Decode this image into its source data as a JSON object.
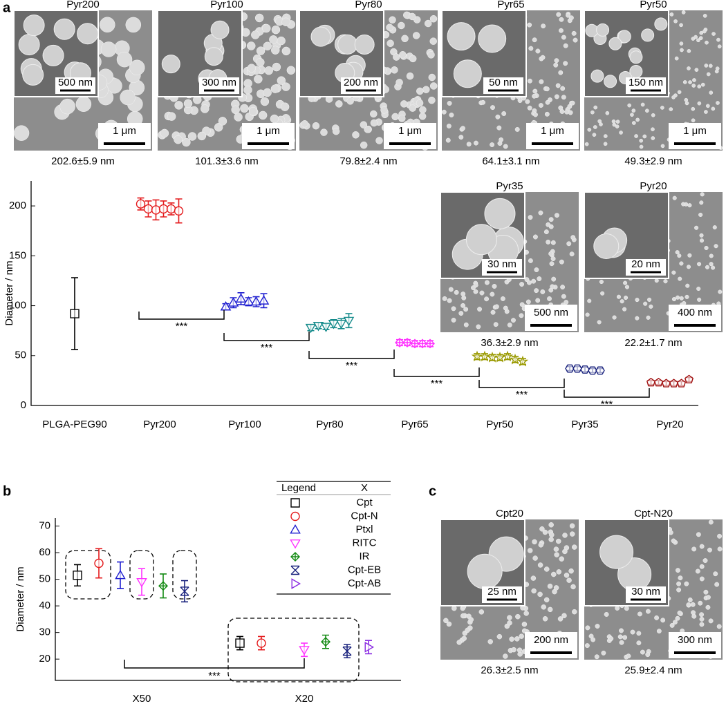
{
  "panel_labels": [
    "a",
    "b",
    "c"
  ],
  "sem_images": [
    {
      "title": "Pyr200",
      "inset_scale": "500 nm",
      "scale": "1 μm",
      "size": "202.6±5.9 nm"
    },
    {
      "title": "Pyr100",
      "inset_scale": "300 nm",
      "scale": "1 μm",
      "size": "101.3±3.6 nm"
    },
    {
      "title": "Pyr80",
      "inset_scale": "200 nm",
      "scale": "1 μm",
      "size": "79.8±2.4 nm"
    },
    {
      "title": "Pyr65",
      "inset_scale": "50 nm",
      "scale": "1 μm",
      "size": "64.1±3.1 nm"
    },
    {
      "title": "Pyr50",
      "inset_scale": "150 nm",
      "scale": "1 μm",
      "size": "49.3±2.9 nm"
    },
    {
      "title": "Pyr35",
      "inset_scale": "30 nm",
      "scale": "500 nm",
      "size": "36.3±2.9 nm"
    },
    {
      "title": "Pyr20",
      "inset_scale": "20 nm",
      "scale": "400 nm",
      "size": "22.2±1.7 nm"
    },
    {
      "title": "Cpt20",
      "inset_scale": "25 nm",
      "scale": "200 nm",
      "size": "26.3±2.5 nm"
    },
    {
      "title": "Cpt-N20",
      "inset_scale": "30 nm",
      "scale": "300 nm",
      "size": "25.9±2.4 nm"
    }
  ],
  "chart_data": [
    {
      "type": "scatter",
      "y_label": "Diameter / nm",
      "categories": [
        "PLGA-PEG90",
        "Pyr200",
        "Pyr100",
        "Pyr80",
        "Pyr65",
        "Pyr50",
        "Pyr35",
        "Pyr20"
      ],
      "groups": [
        {
          "color": "#000000",
          "marker": "square",
          "values": [
            92
          ],
          "errors": [
            36
          ]
        },
        {
          "color": "#e41a1c",
          "marker": "circle",
          "values": [
            202,
            197,
            196,
            197,
            197,
            195
          ],
          "errors": [
            6,
            8,
            10,
            8,
            6,
            12
          ]
        },
        {
          "color": "#1f1fd0",
          "marker": "triangle-up",
          "values": [
            99,
            103,
            107,
            104,
            104,
            105
          ],
          "errors": [
            3,
            5,
            6,
            4,
            5,
            7
          ]
        },
        {
          "color": "#138a8a",
          "marker": "triangle-down",
          "values": [
            78,
            80,
            79,
            82,
            82,
            85
          ],
          "errors": [
            3,
            3,
            3,
            4,
            5,
            7
          ]
        },
        {
          "color": "#ff33ff",
          "marker": "diamond-plus",
          "values": [
            63,
            63,
            62,
            62,
            62
          ],
          "errors": [
            3,
            3,
            3,
            3,
            3
          ]
        },
        {
          "color": "#9a9a00",
          "marker": "star",
          "values": [
            49,
            49,
            48,
            48,
            49,
            46,
            44
          ],
          "errors": [
            3,
            3,
            3,
            3,
            3,
            3,
            3
          ]
        },
        {
          "color": "#1a237e",
          "marker": "hexagon",
          "values": [
            37,
            37,
            36,
            35,
            35
          ],
          "errors": [
            2,
            2,
            2,
            2,
            2
          ]
        },
        {
          "color": "#a01010",
          "marker": "pentagon",
          "values": [
            23,
            23,
            22,
            22,
            22,
            26
          ],
          "errors": [
            2,
            2,
            2,
            2,
            2,
            2
          ]
        }
      ],
      "ylim": [
        0,
        225
      ],
      "yticks": [
        0,
        50,
        100,
        150,
        200
      ],
      "significance": [
        "***",
        "***",
        "***",
        "***",
        "***",
        "***"
      ]
    },
    {
      "type": "scatter",
      "y_label": "Diameter / nm",
      "categories": [
        "X50",
        "X20"
      ],
      "legend_header": [
        "Legend",
        "X"
      ],
      "series": [
        {
          "name": "Cpt",
          "color": "#000000",
          "marker": "square",
          "values": [
            51.5,
            26
          ],
          "errors": [
            4,
            2.5
          ]
        },
        {
          "name": "Cpt-N",
          "color": "#e41a1c",
          "marker": "circle",
          "values": [
            56,
            26
          ],
          "errors": [
            5.5,
            2.5
          ]
        },
        {
          "name": "Ptxl",
          "color": "#1f1fd0",
          "marker": "triangle-up",
          "values": [
            51.5,
            null
          ],
          "errors": [
            5,
            null
          ]
        },
        {
          "name": "RITC",
          "color": "#ff33ff",
          "marker": "triangle-down",
          "values": [
            49,
            23.5
          ],
          "errors": [
            5,
            2.5
          ]
        },
        {
          "name": "IR",
          "color": "#138a13",
          "marker": "diamond-plus",
          "values": [
            47.5,
            26.5
          ],
          "errors": [
            4.5,
            2.5
          ]
        },
        {
          "name": "Cpt-EB",
          "color": "#1a237e",
          "marker": "cross-box",
          "values": [
            45.5,
            23
          ],
          "errors": [
            4,
            2.5
          ]
        },
        {
          "name": "Cpt-AB",
          "color": "#8a2be2",
          "marker": "triangle-right",
          "values": [
            null,
            24.5
          ],
          "errors": [
            null,
            2.5
          ]
        }
      ],
      "ylim": [
        12,
        73
      ],
      "yticks": [
        20,
        30,
        40,
        50,
        60,
        70
      ],
      "significance": [
        "***"
      ]
    }
  ]
}
